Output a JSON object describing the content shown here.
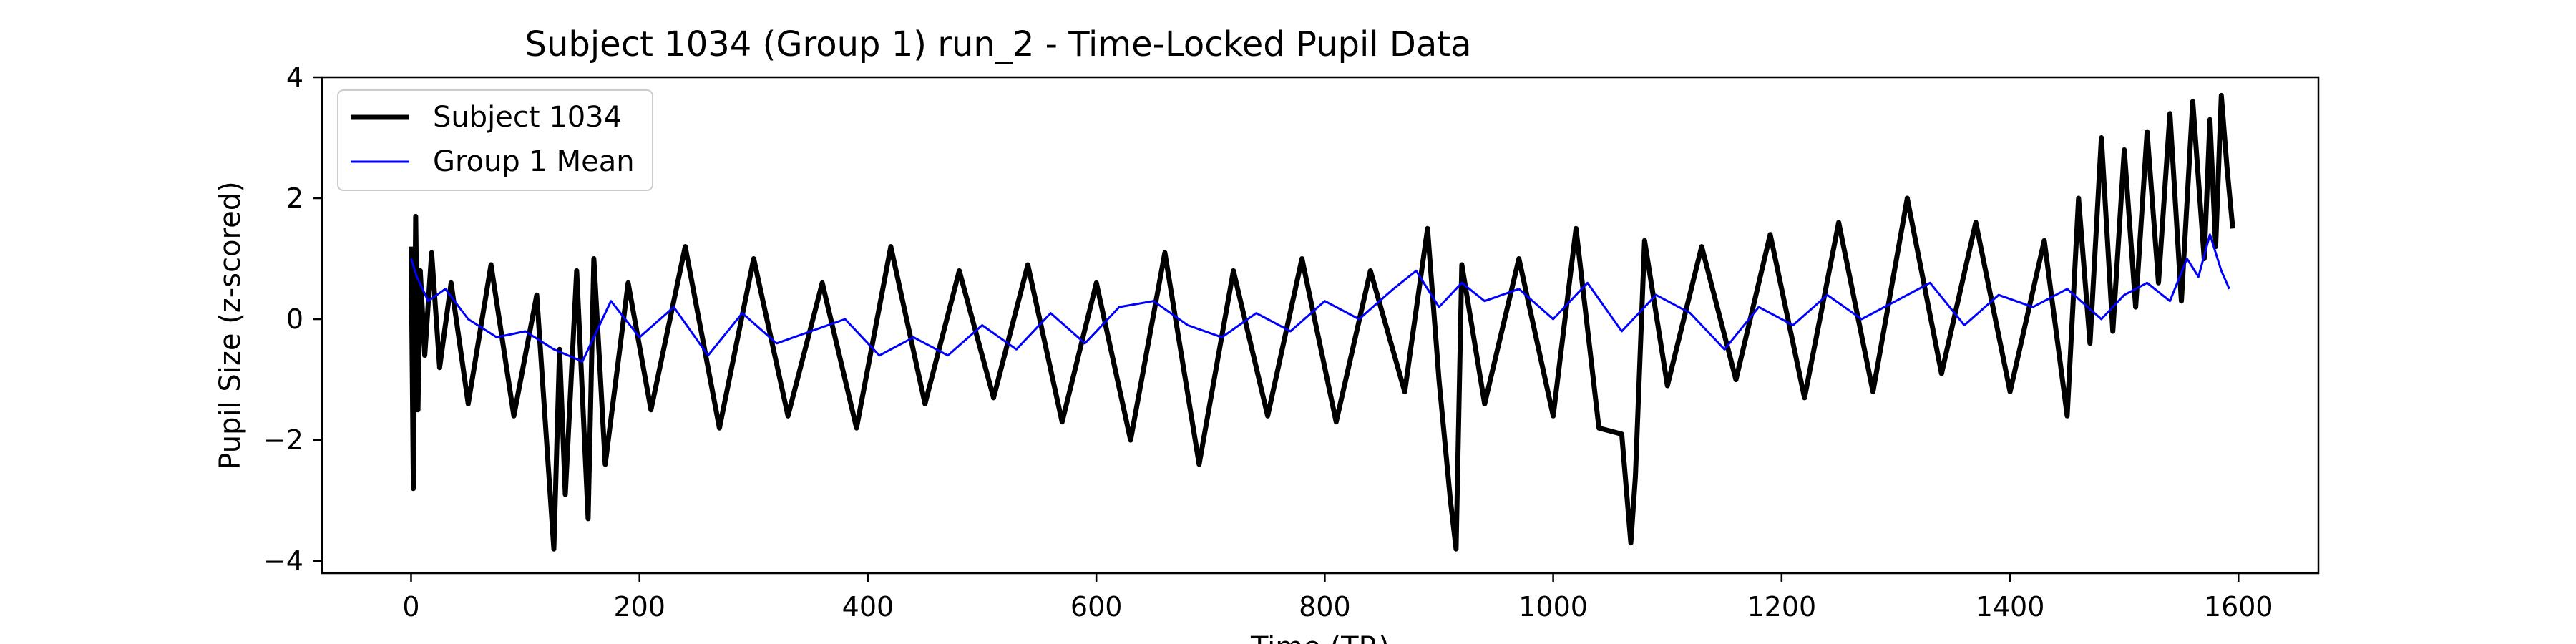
{
  "chart_data": {
    "type": "line",
    "title": "Subject 1034 (Group 1) run_2 - Time-Locked Pupil Data",
    "xlabel": "Time (TR)",
    "ylabel": "Pupil Size (z-scored)",
    "xlim": [
      -78,
      1670
    ],
    "ylim": [
      -4.2,
      4.0
    ],
    "xticks": [
      0,
      200,
      400,
      600,
      800,
      1000,
      1200,
      1400,
      1600
    ],
    "yticks": [
      -4,
      -2,
      0,
      2,
      4
    ],
    "ytick_labels": [
      "−4",
      "−2",
      "0",
      "2",
      "4"
    ],
    "grid": false,
    "legend": {
      "position": "upper-left"
    },
    "series": [
      {
        "name": "Subject 1034",
        "color": "#000000",
        "x": [
          0,
          2,
          4,
          6,
          8,
          12,
          18,
          25,
          35,
          50,
          70,
          90,
          110,
          125,
          130,
          135,
          145,
          155,
          160,
          170,
          190,
          210,
          240,
          270,
          300,
          330,
          360,
          390,
          420,
          450,
          480,
          510,
          540,
          570,
          600,
          630,
          660,
          690,
          720,
          750,
          780,
          810,
          840,
          870,
          890,
          900,
          910,
          915,
          920,
          940,
          970,
          1000,
          1020,
          1040,
          1060,
          1068,
          1072,
          1080,
          1100,
          1130,
          1160,
          1190,
          1220,
          1250,
          1280,
          1310,
          1340,
          1370,
          1400,
          1430,
          1450,
          1460,
          1470,
          1480,
          1490,
          1500,
          1510,
          1520,
          1530,
          1540,
          1550,
          1560,
          1570,
          1575,
          1580,
          1585,
          1590,
          1595
        ],
        "y": [
          1.2,
          -2.8,
          1.7,
          -1.5,
          0.8,
          -0.6,
          1.1,
          -0.8,
          0.6,
          -1.4,
          0.9,
          -1.6,
          0.4,
          -3.8,
          -0.5,
          -2.9,
          0.8,
          -3.3,
          1.0,
          -2.4,
          0.6,
          -1.5,
          1.2,
          -1.8,
          1.0,
          -1.6,
          0.6,
          -1.8,
          1.2,
          -1.4,
          0.8,
          -1.3,
          0.9,
          -1.7,
          0.6,
          -2.0,
          1.1,
          -2.4,
          0.8,
          -1.6,
          1.0,
          -1.7,
          0.8,
          -1.2,
          1.5,
          -1.0,
          -3.0,
          -3.8,
          0.9,
          -1.4,
          1.0,
          -1.6,
          1.5,
          -1.8,
          -1.9,
          -3.7,
          -2.6,
          1.3,
          -1.1,
          1.2,
          -1.0,
          1.4,
          -1.3,
          1.6,
          -1.2,
          2.0,
          -0.9,
          1.6,
          -1.2,
          1.3,
          -1.6,
          2.0,
          -0.4,
          3.0,
          -0.2,
          2.8,
          0.2,
          3.1,
          0.6,
          3.4,
          0.3,
          3.6,
          1.0,
          3.3,
          1.2,
          3.7,
          2.5,
          1.5
        ]
      },
      {
        "name": "Group 1 Mean",
        "color": "#0000ff",
        "x": [
          0,
          5,
          15,
          30,
          50,
          75,
          100,
          125,
          150,
          175,
          200,
          230,
          260,
          290,
          320,
          350,
          380,
          410,
          440,
          470,
          500,
          530,
          560,
          590,
          620,
          650,
          680,
          710,
          740,
          770,
          800,
          830,
          860,
          880,
          900,
          920,
          940,
          970,
          1000,
          1030,
          1060,
          1090,
          1120,
          1150,
          1180,
          1210,
          1240,
          1270,
          1300,
          1330,
          1360,
          1390,
          1420,
          1450,
          1480,
          1500,
          1520,
          1540,
          1555,
          1565,
          1575,
          1585,
          1592
        ],
        "y": [
          1.0,
          0.7,
          0.3,
          0.5,
          0.0,
          -0.3,
          -0.2,
          -0.5,
          -0.7,
          0.3,
          -0.3,
          0.2,
          -0.6,
          0.1,
          -0.4,
          -0.2,
          0.0,
          -0.6,
          -0.3,
          -0.6,
          -0.1,
          -0.5,
          0.1,
          -0.4,
          0.2,
          0.3,
          -0.1,
          -0.3,
          0.1,
          -0.2,
          0.3,
          0.0,
          0.5,
          0.8,
          0.2,
          0.6,
          0.3,
          0.5,
          0.0,
          0.6,
          -0.2,
          0.4,
          0.1,
          -0.5,
          0.2,
          -0.1,
          0.4,
          0.0,
          0.3,
          0.6,
          -0.1,
          0.4,
          0.2,
          0.5,
          0.0,
          0.4,
          0.6,
          0.3,
          1.0,
          0.7,
          1.4,
          0.8,
          0.5
        ]
      }
    ]
  }
}
